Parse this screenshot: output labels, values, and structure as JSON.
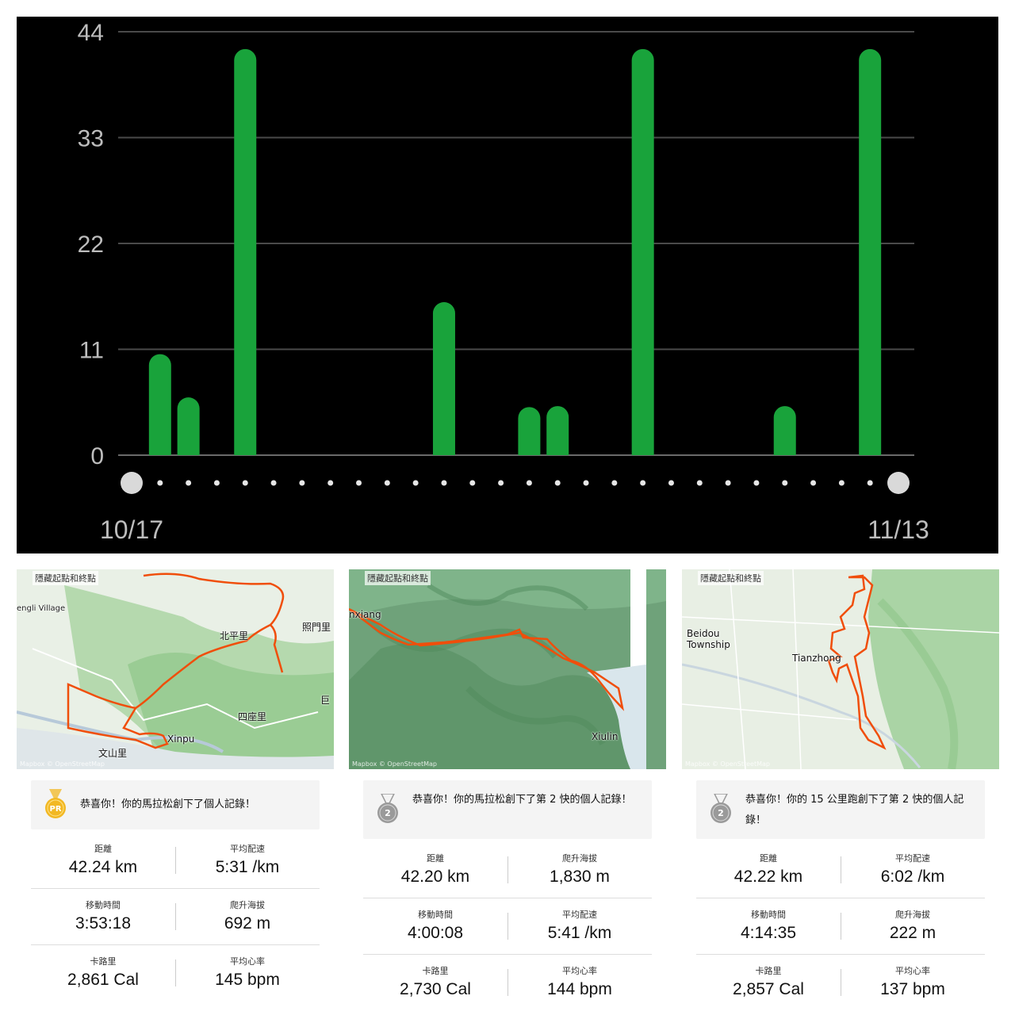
{
  "chart_data": {
    "type": "bar",
    "y_ticks": [
      "44",
      "33",
      "22",
      "11",
      "0"
    ],
    "ylim": [
      0,
      44
    ],
    "x_start_label": "10/17",
    "x_end_label": "11/13",
    "x_dates": [
      "10/17",
      "10/18",
      "10/19",
      "10/20",
      "10/21",
      "10/22",
      "10/23",
      "10/24",
      "10/25",
      "10/26",
      "10/27",
      "10/28",
      "10/29",
      "10/30",
      "10/31",
      "11/01",
      "11/02",
      "11/03",
      "11/04",
      "11/05",
      "11/06",
      "11/07",
      "11/08",
      "11/09",
      "11/10",
      "11/11",
      "11/12",
      "11/13"
    ],
    "values": [
      0,
      10.5,
      6,
      0,
      42.2,
      0,
      0,
      0,
      0,
      0,
      0,
      15.9,
      0,
      0,
      5,
      5.1,
      0,
      0,
      42.2,
      0,
      0,
      0,
      0,
      5.1,
      0,
      0,
      42.2,
      0
    ],
    "bar_color": "#19a33b",
    "grid": true
  },
  "cards": [
    {
      "hide_label": "隱藏起點和終點",
      "map_labels": [
        "engli Village",
        "北平里",
        "照門里",
        "巨",
        "四座里",
        "Xinpu",
        "文山里"
      ],
      "attribution": "Mapbox © OpenStreetMap",
      "medal": "PR",
      "medal_icon": "gold-pr-medal-icon",
      "message": "恭喜你！你的馬拉松創下了個人記錄！",
      "stats": [
        [
          {
            "label": "距離",
            "value": "42.24 km"
          },
          {
            "label": "平均配速",
            "value": "5:31 /km"
          }
        ],
        [
          {
            "label": "移動時間",
            "value": "3:53:18"
          },
          {
            "label": "爬升海拔",
            "value": "692 m"
          }
        ],
        [
          {
            "label": "卡路里",
            "value": "2,861 Cal"
          },
          {
            "label": "平均心率",
            "value": "145 bpm"
          }
        ]
      ]
    },
    {
      "hide_label": "隱藏起點和終點",
      "map_labels": [
        "nxiang",
        "Xiulin"
      ],
      "attribution": "Mapbox © OpenStreetMap",
      "medal": "2",
      "medal_icon": "silver-second-medal-icon",
      "message": "恭喜你！你的馬拉松創下了第 2 快的個人記錄！",
      "stats": [
        [
          {
            "label": "距離",
            "value": "42.20 km"
          },
          {
            "label": "爬升海拔",
            "value": "1,830 m"
          }
        ],
        [
          {
            "label": "移動時間",
            "value": "4:00:08"
          },
          {
            "label": "平均配速",
            "value": "5:41 /km"
          }
        ],
        [
          {
            "label": "卡路里",
            "value": "2,730 Cal"
          },
          {
            "label": "平均心率",
            "value": "144 bpm"
          }
        ]
      ]
    },
    {
      "hide_label": "隱藏起點和終點",
      "map_labels": [
        "Beidou Township",
        "Tianzhong"
      ],
      "attribution": "Mapbox © OpenStreetMap",
      "medal": "2",
      "medal_icon": "silver-second-medal-icon",
      "message": "恭喜你！你的 15 公里跑創下了第 2 快的個人記錄！",
      "stats": [
        [
          {
            "label": "距離",
            "value": "42.22 km"
          },
          {
            "label": "平均配速",
            "value": "6:02 /km"
          }
        ],
        [
          {
            "label": "移動時間",
            "value": "4:14:35"
          },
          {
            "label": "爬升海拔",
            "value": "222 m"
          }
        ],
        [
          {
            "label": "卡路里",
            "value": "2,857 Cal"
          },
          {
            "label": "平均心率",
            "value": "137 bpm"
          }
        ]
      ]
    }
  ],
  "colors": {
    "route": "#f04e0b",
    "map_land": "#e6efe3",
    "map_mountain": "#9fcf9a",
    "gold": "#f2b824",
    "silver": "#9a9a9a"
  }
}
